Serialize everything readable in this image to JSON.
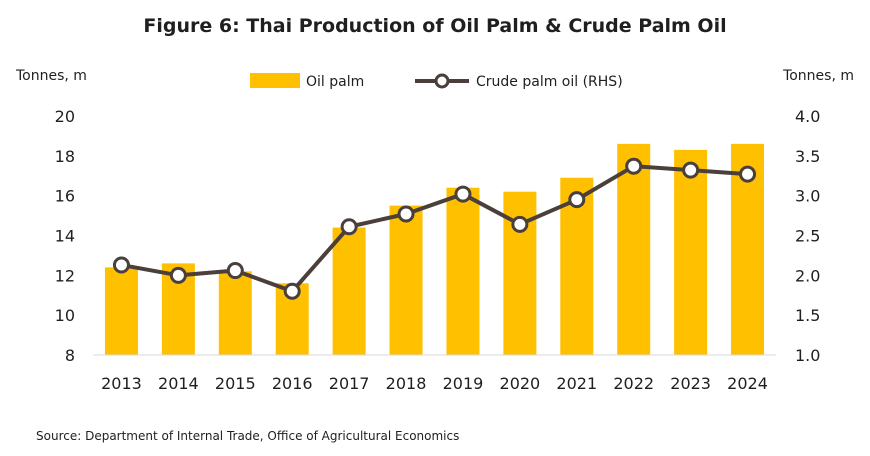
{
  "chart_data": {
    "type": "bar",
    "title": "Figure 6: Thai Production of Oil Palm & Crude Palm Oil",
    "ylabel_left": "Tonnes, m",
    "ylabel_right": "Tonnes, m",
    "source": "Source: Department of Internal Trade, Office of Agricultural Economics",
    "categories": [
      "2013",
      "2014",
      "2015",
      "2016",
      "2017",
      "2018",
      "2019",
      "2020",
      "2021",
      "2022",
      "2023",
      "2024"
    ],
    "ylim_left": [
      8,
      20
    ],
    "yticks_left": [
      "8",
      "10",
      "12",
      "14",
      "16",
      "18",
      "20"
    ],
    "ylim_right": [
      1.0,
      4.0
    ],
    "yticks_right": [
      "1.0",
      "1.5",
      "2.0",
      "2.5",
      "3.0",
      "3.5",
      "4.0"
    ],
    "legend_position": "top-center",
    "grid": false,
    "series": [
      {
        "name": "Oil palm",
        "type": "bar",
        "axis": "left",
        "color": "#ffc000",
        "values": [
          12.4,
          12.6,
          12.2,
          11.6,
          14.4,
          15.5,
          16.4,
          16.2,
          16.9,
          18.6,
          18.3,
          18.6
        ]
      },
      {
        "name": "Crude palm oil (RHS)",
        "type": "line",
        "axis": "right",
        "color": "#4a3f3a",
        "values": [
          2.13,
          2.0,
          2.06,
          1.8,
          2.61,
          2.77,
          3.02,
          2.64,
          2.95,
          3.37,
          3.32,
          3.27
        ]
      }
    ]
  }
}
